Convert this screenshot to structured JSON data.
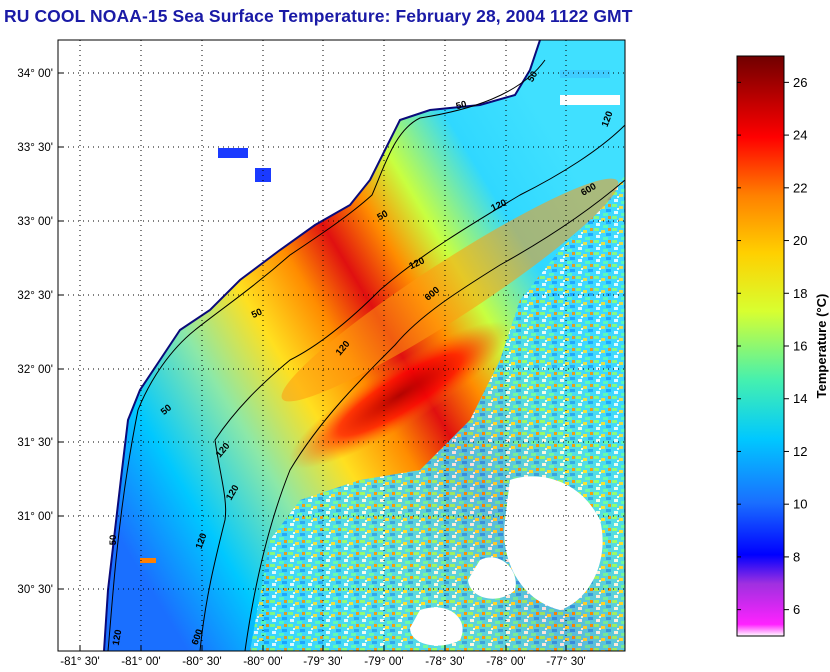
{
  "title": "RU COOL  NOAA-15  Sea Surface Temperature:  February 28, 2004 1122 GMT",
  "map": {
    "lat_ticks": [
      "34° 00'",
      "33° 30'",
      "33° 00'",
      "32° 30'",
      "32° 00'",
      "31° 30'",
      "31° 00'",
      "30° 30'"
    ],
    "lon_ticks": [
      "-81° 30'",
      "-81° 00'",
      "-80° 30'",
      "-80° 00'",
      "-79° 30'",
      "-79° 00'",
      "-78° 30'",
      "-78° 00'",
      "-77° 30'"
    ],
    "contour_labels": [
      {
        "text": "50",
        "depth": 50
      },
      {
        "text": "50",
        "depth": 50
      },
      {
        "text": "50",
        "depth": 50
      },
      {
        "text": "50",
        "depth": 50
      },
      {
        "text": "50",
        "depth": 50
      },
      {
        "text": "50",
        "depth": 50
      },
      {
        "text": "120",
        "depth": 120
      },
      {
        "text": "120",
        "depth": 120
      },
      {
        "text": "120",
        "depth": 120
      },
      {
        "text": "120",
        "depth": 120
      },
      {
        "text": "120",
        "depth": 120
      },
      {
        "text": "120",
        "depth": 120
      },
      {
        "text": "120",
        "depth": 120
      },
      {
        "text": "120",
        "depth": 120
      },
      {
        "text": "600",
        "depth": 600
      },
      {
        "text": "600",
        "depth": 600
      },
      {
        "text": "600",
        "depth": 600
      }
    ]
  },
  "colorbar": {
    "label": "Temperature (°C)",
    "min": 5,
    "max": 27,
    "ticks": [
      "6",
      "8",
      "10",
      "12",
      "14",
      "16",
      "18",
      "20",
      "22",
      "24",
      "26"
    ]
  },
  "colors": {
    "title": "#1a1aa6",
    "land": "#ffffff",
    "stops": [
      "#ffffff",
      "#ff22ff",
      "#9933dd",
      "#0000ff",
      "#1a6fff",
      "#00c8ff",
      "#44f0b0",
      "#d8ff30",
      "#ffd000",
      "#ff8000",
      "#ff0000",
      "#b00000",
      "#700000"
    ]
  }
}
